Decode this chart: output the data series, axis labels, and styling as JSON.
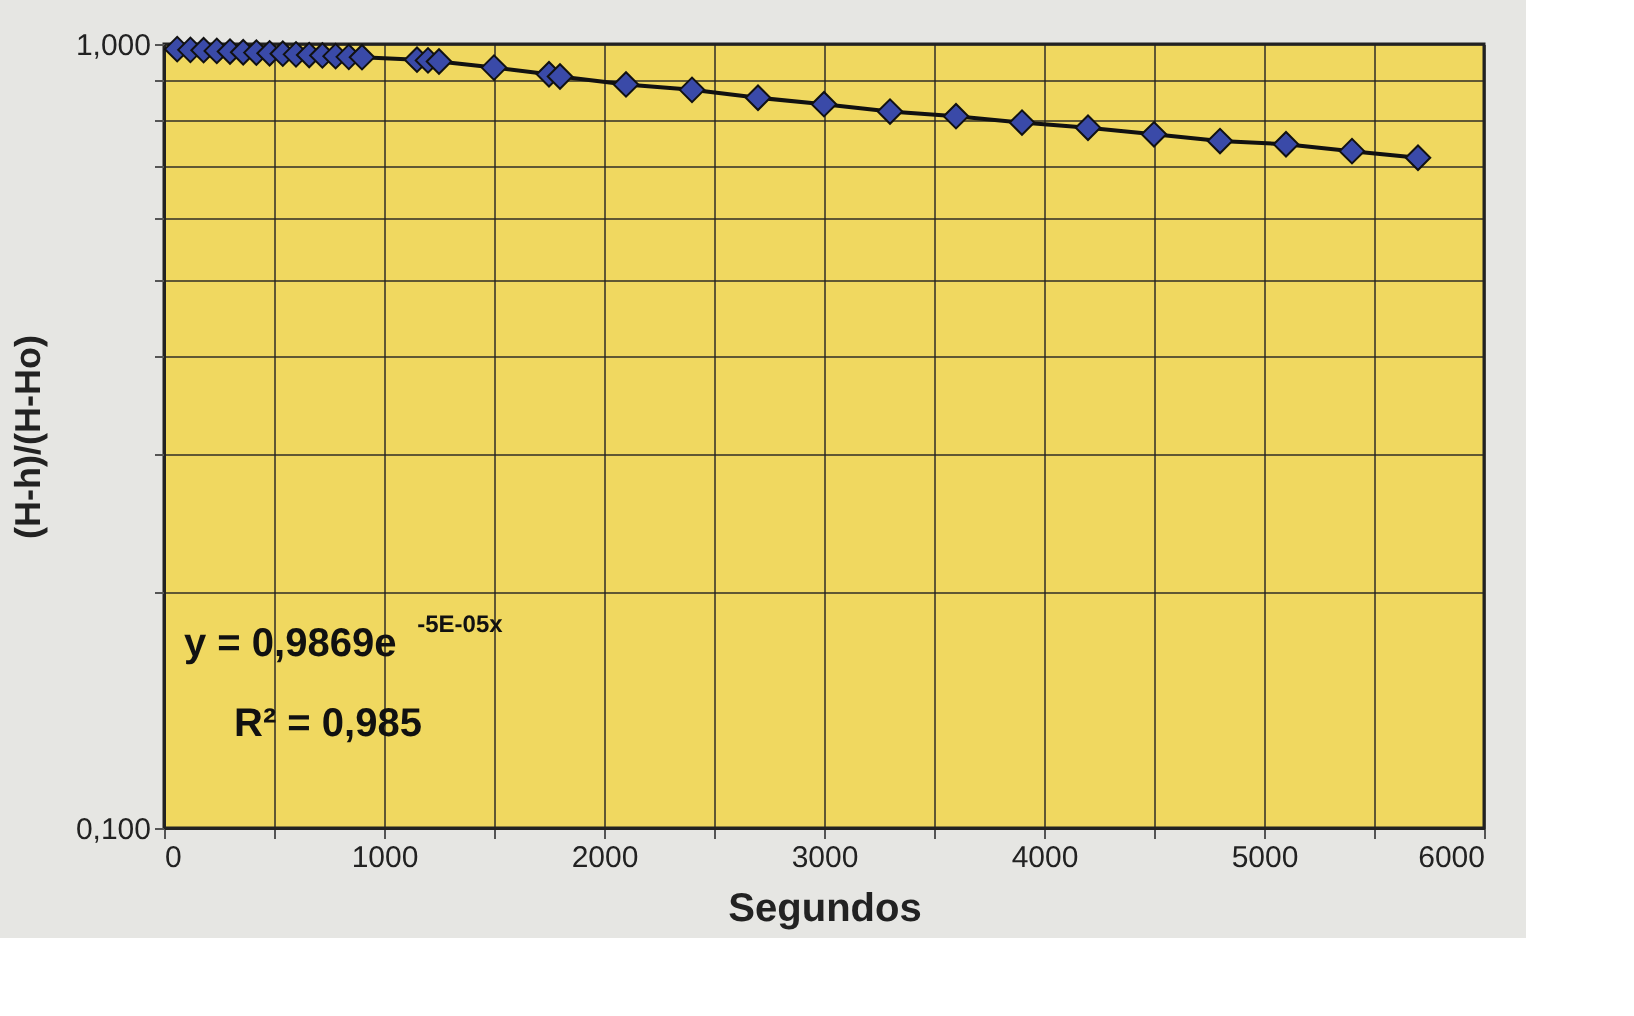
{
  "chart_data": {
    "type": "line",
    "xlabel": "Segundos",
    "ylabel": "(H-h)/(H-Ho)",
    "x": [
      60,
      120,
      180,
      240,
      300,
      360,
      420,
      480,
      540,
      600,
      660,
      720,
      780,
      840,
      900,
      1150,
      1200,
      1250,
      1500,
      1750,
      1800,
      2100,
      2400,
      2700,
      3000,
      3300,
      3600,
      3900,
      4200,
      4500,
      4800,
      5100,
      5400,
      5700
    ],
    "series": [
      {
        "color": "#3a4aa8",
        "values": [
          0.985,
          0.983,
          0.982,
          0.98,
          0.978,
          0.976,
          0.975,
          0.973,
          0.972,
          0.97,
          0.968,
          0.967,
          0.965,
          0.963,
          0.962,
          0.955,
          0.953,
          0.95,
          0.933,
          0.915,
          0.909,
          0.888,
          0.874,
          0.854,
          0.838,
          0.82,
          0.809,
          0.794,
          0.782,
          0.767,
          0.752,
          0.745,
          0.73,
          0.716
        ]
      }
    ],
    "xlim": [
      0,
      6000
    ],
    "xticks": [
      0,
      {
        "value": 500,
        "label": null
      },
      1000,
      {
        "value": 1500,
        "label": null
      },
      2000,
      {
        "value": 2500,
        "label": null
      },
      3000,
      {
        "value": 3500,
        "label": null
      },
      4000,
      {
        "value": 4500,
        "label": null
      },
      5000,
      {
        "value": 5500,
        "label": null
      },
      6000
    ],
    "ylim": [
      0.1,
      1
    ],
    "yticks": [
      {
        "value": 0.1,
        "label": "0,100"
      },
      {
        "value": 0.2,
        "label": null
      },
      {
        "value": 0.3,
        "label": null
      },
      {
        "value": 0.4,
        "label": null
      },
      {
        "value": 0.5,
        "label": null
      },
      {
        "value": 0.6,
        "label": null
      },
      {
        "value": 0.7,
        "label": null
      },
      {
        "value": 0.8,
        "label": null
      },
      {
        "value": 0.9,
        "label": null
      },
      {
        "value": 1,
        "label": "1,000"
      }
    ],
    "log": "y",
    "grid": true,
    "marker": "diamond",
    "line_style": "solid",
    "annotations": [
      "y = 0,9869e$^{-5E-05x}$",
      "R² = 0,985"
    ]
  }
}
